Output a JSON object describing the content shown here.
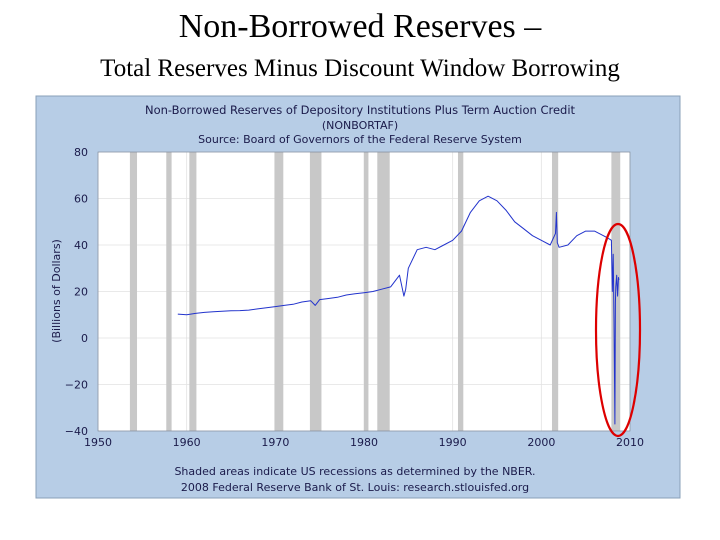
{
  "slide": {
    "title_line1": "Non-Borrowed Reserves –",
    "title_line2": "Total Reserves Minus Discount Window Borrowing"
  },
  "chart_data": {
    "type": "line",
    "title": "Non-Borrowed Reserves of Depository Institutions Plus Term Auction Credit",
    "subtitle": "(NONBORTAF)",
    "source": "Source: Board of Governors of the Federal Reserve System",
    "ylabel": "(Billions of Dollars)",
    "xlabel": "",
    "xlim": [
      1950,
      2010
    ],
    "ylim": [
      -40,
      80
    ],
    "x_ticks": [
      1950,
      1960,
      1970,
      1980,
      1990,
      2000,
      2010
    ],
    "y_ticks": [
      80,
      60,
      40,
      20,
      0,
      -20,
      -40
    ],
    "grid": true,
    "recessions": [
      [
        1953.6,
        1954.4
      ],
      [
        1957.7,
        1958.3
      ],
      [
        1960.3,
        1961.1
      ],
      [
        1969.9,
        1970.9
      ],
      [
        1973.9,
        1975.2
      ],
      [
        1980.0,
        1980.5
      ],
      [
        1981.5,
        1982.9
      ],
      [
        1990.6,
        1991.2
      ],
      [
        2001.2,
        2001.9
      ],
      [
        2007.9,
        2008.9
      ]
    ],
    "series": [
      {
        "color": "#2233cc",
        "x": [
          1959.0,
          1960.0,
          1961.0,
          1962.0,
          1963.0,
          1964.0,
          1965.0,
          1966.0,
          1967.0,
          1968.0,
          1969.0,
          1970.0,
          1971.0,
          1972.0,
          1973.0,
          1974.0,
          1974.5,
          1975.0,
          1976.0,
          1977.0,
          1978.0,
          1979.0,
          1980.0,
          1981.0,
          1982.0,
          1983.0,
          1984.0,
          1984.5,
          1984.7,
          1985.0,
          1986.0,
          1987.0,
          1988.0,
          1989.0,
          1990.0,
          1991.0,
          1992.0,
          1993.0,
          1994.0,
          1995.0,
          1996.0,
          1997.0,
          1998.0,
          1999.0,
          2000.0,
          2001.0,
          2001.6,
          2001.7,
          2001.8,
          2002.0,
          2003.0,
          2004.0,
          2005.0,
          2006.0,
          2007.0,
          2007.5,
          2007.9,
          2008.0,
          2008.1,
          2008.2,
          2008.3,
          2008.35,
          2008.4,
          2008.5,
          2008.6,
          2008.7,
          2008.75
        ],
        "y": [
          10.3,
          10.0,
          10.6,
          11.0,
          11.3,
          11.5,
          11.7,
          11.8,
          12.0,
          12.5,
          13.0,
          13.5,
          14.0,
          14.5,
          15.5,
          16.0,
          14.0,
          16.5,
          17.0,
          17.5,
          18.5,
          19.0,
          19.5,
          20.0,
          21.0,
          22.0,
          27.0,
          18.0,
          21.0,
          30.0,
          38.0,
          39.0,
          38.0,
          40.0,
          42.0,
          46.0,
          54.0,
          59.0,
          61.0,
          59.0,
          55.0,
          50.0,
          47.0,
          44.0,
          42.0,
          40.0,
          45.0,
          54.0,
          41.0,
          39.0,
          40.0,
          44.0,
          46.0,
          46.0,
          44.0,
          43.0,
          42.0,
          20.0,
          36.0,
          8.0,
          -37.0,
          15.0,
          22.0,
          27.0,
          18.0,
          26.0,
          25.0
        ]
      }
    ],
    "footer_line1": "Shaded areas indicate US recessions as determined by the NBER.",
    "footer_line2": "2008 Federal Reserve Bank of St. Louis: research.stlouisfed.org",
    "highlight": {
      "shape": "ellipse",
      "color": "#dd0000"
    },
    "colors": {
      "panel_bg": "#b7cde6",
      "plot_bg": "#ffffff",
      "recession": "#c8c8c8",
      "line": "#2233cc",
      "ellipse": "#dd0000"
    }
  }
}
